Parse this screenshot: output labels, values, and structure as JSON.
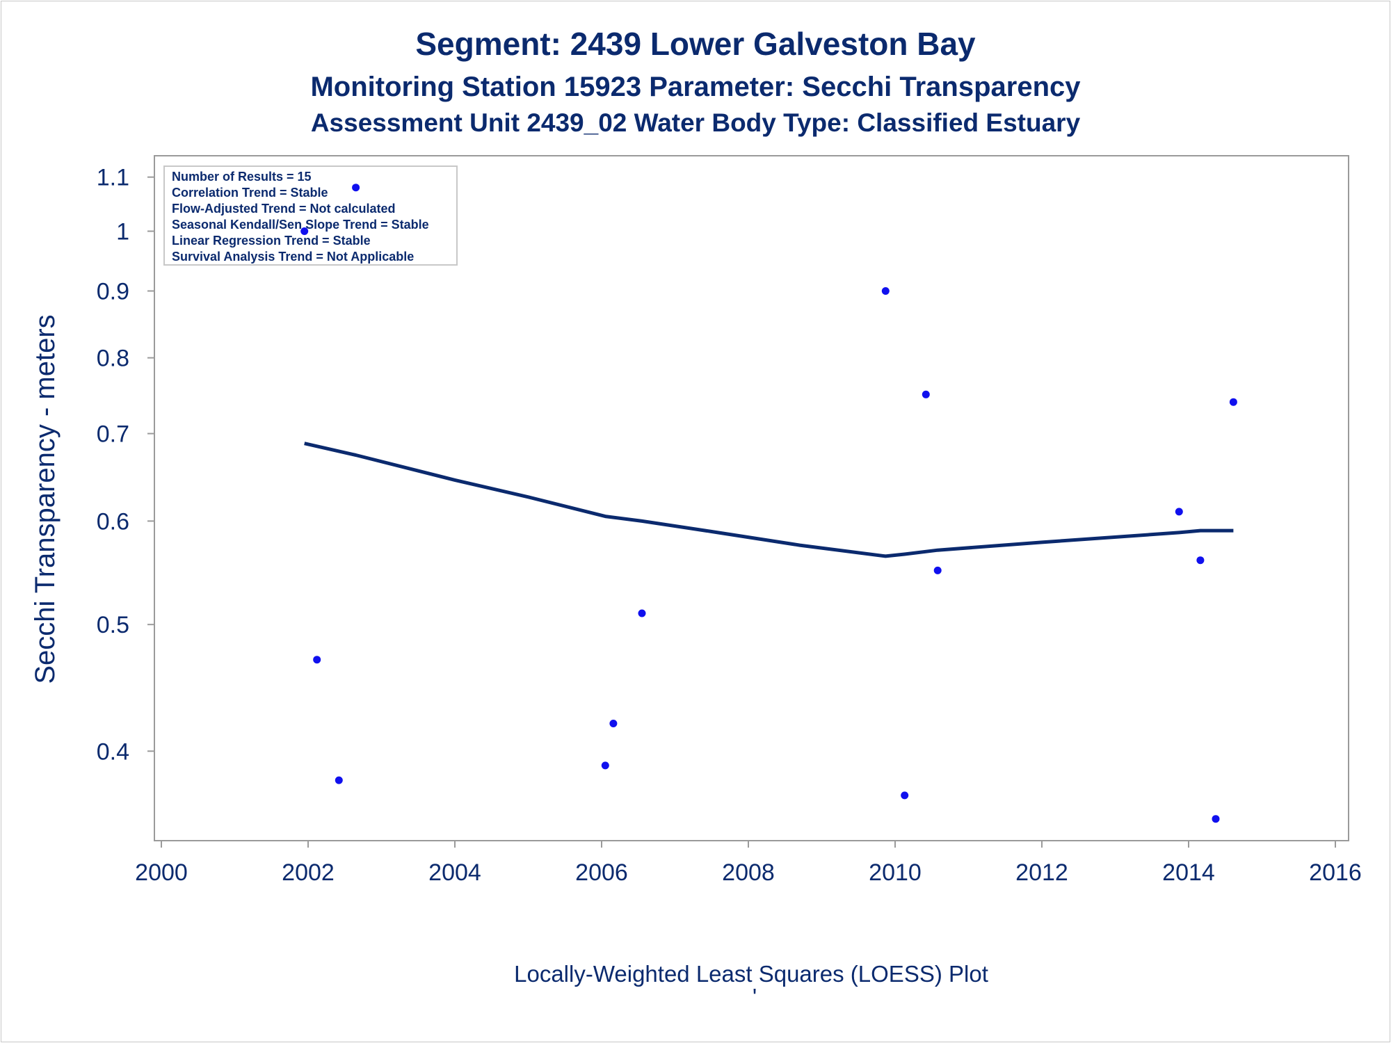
{
  "titles": {
    "line1": "Segment: 2439  Lower Galveston Bay",
    "line2": "Monitoring Station 15923 Parameter: Secchi Transparency",
    "line3": "Assessment Unit 2439_02   Water Body Type: Classified Estuary"
  },
  "legend": {
    "lines": [
      "Number of Results = 15",
      "Correlation Trend = Stable",
      "Flow-Adjusted Trend = Not calculated",
      "Seasonal Kendall/Sen Slope Trend = Stable",
      "Linear Regression Trend = Stable",
      "Survival Analysis Trend = Not Applicable"
    ]
  },
  "footnote": "Locally-Weighted Least Squares (LOESS) Plot",
  "footnote_mark": "'",
  "colors": {
    "text": "#0b2a6e",
    "points": "#1010ee",
    "loess_line": "#0b2a6e",
    "axis": "#9a9a9a"
  },
  "chart_data": {
    "type": "scatter",
    "title": "Segment: 2439  Lower Galveston Bay",
    "xlabel": "",
    "ylabel": "Secchi Transparency - meters",
    "y_scale": "log",
    "xlim": [
      2000,
      2016
    ],
    "ylim": [
      0.345,
      1.12
    ],
    "x_ticks": [
      2000,
      2002,
      2004,
      2006,
      2008,
      2010,
      2012,
      2014,
      2016
    ],
    "x_tick_labels": [
      "2000",
      "2002",
      "2004",
      "2006",
      "2008",
      "2010",
      "2012",
      "2014",
      "2016"
    ],
    "y_ticks": [
      0.4,
      0.5,
      0.6,
      0.7,
      0.8,
      0.9,
      1.0,
      1.1
    ],
    "y_tick_labels": [
      "0.4",
      "0.5",
      "0.6",
      "0.7",
      "0.8",
      "0.9",
      "1",
      "1.1"
    ],
    "grid": false,
    "legend_position": "top-left",
    "points": [
      {
        "x": 2001.95,
        "y": 1.0
      },
      {
        "x": 2002.12,
        "y": 0.47
      },
      {
        "x": 2002.42,
        "y": 0.38
      },
      {
        "x": 2002.65,
        "y": 1.08
      },
      {
        "x": 2006.05,
        "y": 0.39
      },
      {
        "x": 2006.16,
        "y": 0.42
      },
      {
        "x": 2006.55,
        "y": 0.51
      },
      {
        "x": 2009.87,
        "y": 0.9
      },
      {
        "x": 2010.13,
        "y": 0.37
      },
      {
        "x": 2010.42,
        "y": 0.75
      },
      {
        "x": 2010.58,
        "y": 0.55
      },
      {
        "x": 2013.87,
        "y": 0.61
      },
      {
        "x": 2014.16,
        "y": 0.56
      },
      {
        "x": 2014.37,
        "y": 0.355
      },
      {
        "x": 2014.61,
        "y": 0.74
      }
    ],
    "loess": [
      {
        "x": 2001.95,
        "y": 0.688
      },
      {
        "x": 2002.65,
        "y": 0.674
      },
      {
        "x": 2004.0,
        "y": 0.645
      },
      {
        "x": 2005.0,
        "y": 0.626
      },
      {
        "x": 2006.05,
        "y": 0.605
      },
      {
        "x": 2006.55,
        "y": 0.6
      },
      {
        "x": 2007.5,
        "y": 0.589
      },
      {
        "x": 2008.7,
        "y": 0.575
      },
      {
        "x": 2009.87,
        "y": 0.564
      },
      {
        "x": 2010.13,
        "y": 0.566
      },
      {
        "x": 2010.58,
        "y": 0.57
      },
      {
        "x": 2012.0,
        "y": 0.578
      },
      {
        "x": 2013.87,
        "y": 0.588
      },
      {
        "x": 2014.16,
        "y": 0.59
      },
      {
        "x": 2014.61,
        "y": 0.59
      }
    ]
  }
}
